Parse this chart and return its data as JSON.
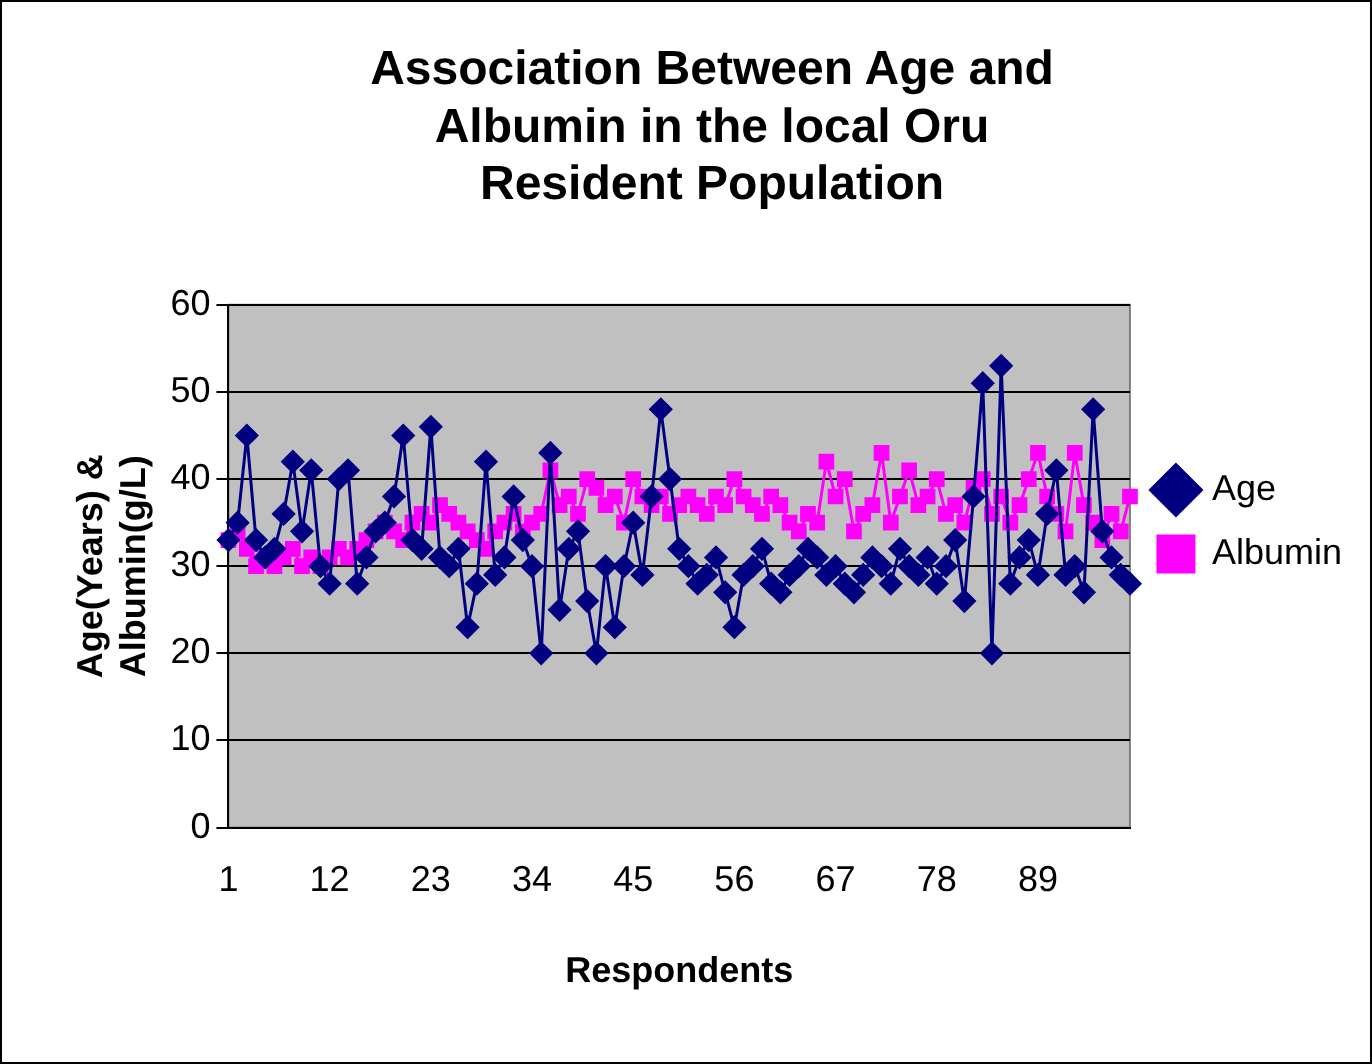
{
  "chart_data": {
    "type": "line",
    "title": "Association Between Age and Albumin in the local Oru Resident Population",
    "xlabel": "Respondents",
    "ylabel": "Age(Years) & Albumin(g/L)",
    "categories": [
      "1",
      null,
      null,
      null,
      null,
      null,
      null,
      null,
      null,
      null,
      null,
      "12",
      null,
      null,
      null,
      null,
      null,
      null,
      null,
      null,
      null,
      null,
      "23",
      null,
      null,
      null,
      null,
      null,
      null,
      null,
      null,
      null,
      null,
      "34",
      null,
      null,
      null,
      null,
      null,
      null,
      null,
      null,
      null,
      null,
      "45",
      null,
      null,
      null,
      null,
      null,
      null,
      null,
      null,
      null,
      null,
      "56",
      null,
      null,
      null,
      null,
      null,
      null,
      null,
      null,
      null,
      null,
      "67",
      null,
      null,
      null,
      null,
      null,
      null,
      null,
      null,
      null,
      null,
      "78",
      null,
      null,
      null,
      null,
      null,
      null,
      null,
      null,
      null,
      null,
      "89",
      null,
      null,
      null,
      null,
      null,
      null,
      null,
      null,
      null,
      null
    ],
    "series": [
      {
        "name": "Age",
        "color": "#000080",
        "marker": "diamond",
        "values": [
          33,
          35,
          45,
          33,
          31,
          32,
          36,
          42,
          34,
          41,
          30,
          28,
          40,
          41,
          28,
          31,
          34,
          35,
          38,
          45,
          33,
          32,
          46,
          31,
          30,
          32,
          23,
          28,
          42,
          29,
          31,
          38,
          33,
          30,
          20,
          43,
          25,
          32,
          34,
          26,
          20,
          30,
          23,
          30,
          35,
          29,
          38,
          48,
          40,
          32,
          30,
          28,
          29,
          31,
          27,
          23,
          29,
          30,
          32,
          28,
          27,
          29,
          30,
          32,
          31,
          29,
          30,
          28,
          27,
          29,
          31,
          30,
          28,
          32,
          30,
          29,
          31,
          28,
          30,
          33,
          26,
          38,
          51,
          20,
          53,
          28,
          31,
          33,
          29,
          36,
          41,
          29,
          30,
          27,
          48,
          34,
          31,
          29,
          28
        ]
      },
      {
        "name": "Albumin",
        "color": "#ff00ff",
        "marker": "square",
        "values": [
          33,
          34,
          32,
          30,
          31,
          30,
          31,
          32,
          30,
          31,
          30,
          31,
          32,
          31,
          32,
          33,
          34,
          35,
          34,
          33,
          35,
          36,
          35,
          37,
          36,
          35,
          34,
          33,
          32,
          34,
          35,
          36,
          34,
          35,
          36,
          41,
          37,
          38,
          36,
          40,
          39,
          37,
          38,
          35,
          40,
          38,
          37,
          38,
          36,
          37,
          38,
          37,
          36,
          38,
          37,
          40,
          38,
          37,
          36,
          38,
          37,
          35,
          34,
          36,
          35,
          42,
          38,
          40,
          34,
          36,
          37,
          43,
          35,
          38,
          41,
          37,
          38,
          40,
          36,
          37,
          35,
          39,
          40,
          36,
          38,
          35,
          37,
          40,
          43,
          38,
          36,
          34,
          43,
          37,
          35,
          33,
          36,
          34,
          38
        ]
      }
    ],
    "ylim": [
      0,
      60
    ],
    "yticks": [
      0,
      10,
      20,
      30,
      40,
      50,
      60
    ],
    "grid": "y",
    "legend": "right"
  }
}
